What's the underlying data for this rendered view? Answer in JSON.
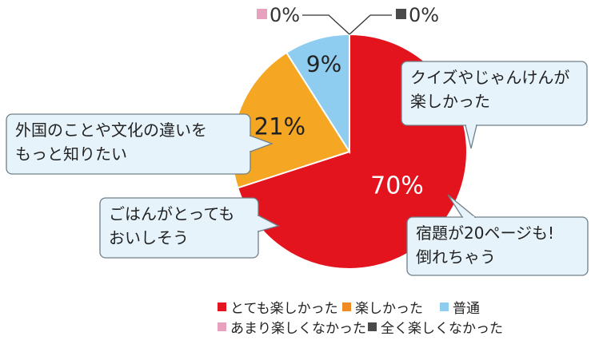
{
  "chart_data": {
    "type": "pie",
    "categories": [
      "とても楽しかった",
      "楽しかった",
      "普通",
      "あまり楽しくなかった",
      "全く楽しくなかった"
    ],
    "values": [
      70,
      21,
      9,
      0,
      0
    ],
    "value_labels": [
      "70%",
      "21%",
      "9%",
      "0%",
      "0%"
    ],
    "colors": [
      "#e3141e",
      "#f5a623",
      "#8ecdf0",
      "#e8a0bf",
      "#4a4a4a"
    ],
    "legend": {
      "placement": "bottom",
      "items": [
        {
          "label": "とても楽しかった",
          "color": "#e3141e"
        },
        {
          "label": "楽しかった",
          "color": "#f08a24"
        },
        {
          "label": "普通",
          "color": "#8ecdf0"
        },
        {
          "label": "あまり楽しくなかった",
          "color": "#e8a0bf"
        },
        {
          "label": "全く楽しくなかった",
          "color": "#4a4a4a"
        }
      ]
    },
    "callouts": [
      {
        "lines": [
          "クイズやじゃんけんが",
          "楽しかった"
        ]
      },
      {
        "lines": [
          "外国のことや文化の違いを",
          "もっと知りたい"
        ]
      },
      {
        "lines": [
          "ごはんがとっても",
          "おいしそう"
        ]
      },
      {
        "lines": [
          "宿題が20ページも!",
          "倒れちゃう"
        ]
      }
    ]
  }
}
